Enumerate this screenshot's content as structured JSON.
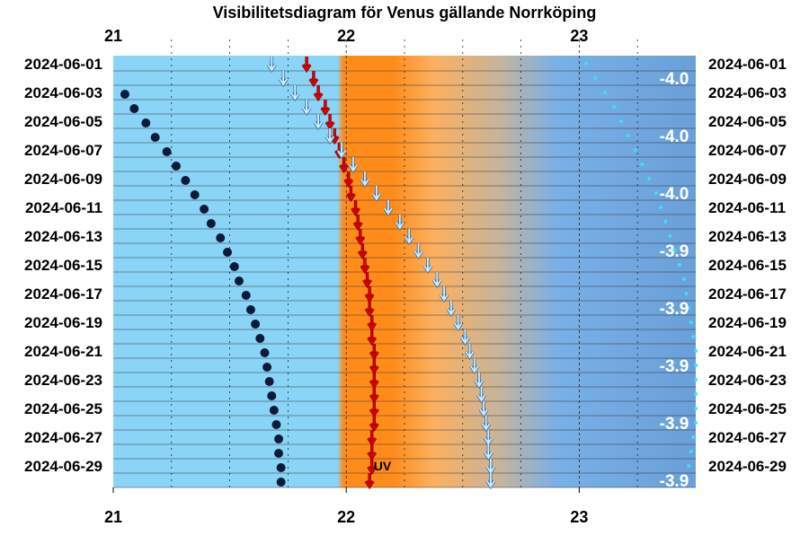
{
  "chart_data": {
    "type": "scatter",
    "title": "Visibilitetsdiagram för Venus gällande Norrköping",
    "x_axis": {
      "ticks": [
        "21",
        "22",
        "23"
      ],
      "range_hours": [
        21,
        23.5
      ]
    },
    "dates": [
      "2024-06-01",
      "2024-06-02",
      "2024-06-03",
      "2024-06-04",
      "2024-06-05",
      "2024-06-06",
      "2024-06-07",
      "2024-06-08",
      "2024-06-09",
      "2024-06-10",
      "2024-06-11",
      "2024-06-12",
      "2024-06-13",
      "2024-06-14",
      "2024-06-15",
      "2024-06-16",
      "2024-06-17",
      "2024-06-18",
      "2024-06-19",
      "2024-06-20",
      "2024-06-21",
      "2024-06-22",
      "2024-06-23",
      "2024-06-24",
      "2024-06-25",
      "2024-06-26",
      "2024-06-27",
      "2024-06-28",
      "2024-06-29",
      "2024-06-30"
    ],
    "date_labels": [
      "2024-06-01",
      "2024-06-03",
      "2024-06-05",
      "2024-06-07",
      "2024-06-09",
      "2024-06-11",
      "2024-06-13",
      "2024-06-15",
      "2024-06-17",
      "2024-06-19",
      "2024-06-21",
      "2024-06-23",
      "2024-06-25",
      "2024-06-27",
      "2024-06-29"
    ],
    "series": [
      {
        "kind": "moon_dots",
        "color": "#0d1a3a",
        "values": [
          null,
          null,
          21.05,
          21.09,
          21.14,
          21.18,
          21.23,
          21.27,
          21.31,
          21.35,
          21.39,
          21.42,
          21.46,
          21.49,
          21.52,
          21.54,
          21.57,
          21.59,
          21.61,
          21.63,
          21.65,
          21.66,
          21.67,
          21.68,
          21.69,
          21.7,
          21.71,
          21.71,
          21.72,
          21.72
        ]
      },
      {
        "kind": "sunset_arrows",
        "color": "#e00000",
        "values": [
          21.83,
          21.86,
          21.88,
          21.91,
          21.93,
          21.95,
          21.97,
          21.99,
          22.01,
          22.02,
          22.04,
          22.05,
          22.06,
          22.07,
          22.08,
          22.09,
          22.1,
          22.1,
          22.11,
          22.11,
          22.12,
          22.12,
          22.12,
          22.12,
          22.12,
          22.12,
          22.11,
          22.11,
          22.11,
          22.1
        ]
      },
      {
        "kind": "venus_set_arrows",
        "color": "#cfeeff",
        "values": [
          21.68,
          21.73,
          21.78,
          21.83,
          21.88,
          21.93,
          21.98,
          22.03,
          22.08,
          22.13,
          22.18,
          22.23,
          22.27,
          22.31,
          22.35,
          22.39,
          22.42,
          22.45,
          22.48,
          22.51,
          22.53,
          22.55,
          22.57,
          22.58,
          22.59,
          22.6,
          22.61,
          22.61,
          22.62,
          22.62
        ]
      },
      {
        "kind": "twilight_dots",
        "color": "#40e0f0",
        "values": [
          23.03,
          23.07,
          23.11,
          23.15,
          23.18,
          23.21,
          23.24,
          23.27,
          23.3,
          23.33,
          23.35,
          23.37,
          23.39,
          23.41,
          23.43,
          23.45,
          23.46,
          23.47,
          23.48,
          23.49,
          23.5,
          23.5,
          23.5,
          23.5,
          23.5,
          23.5,
          23.49,
          23.48,
          23.47,
          23.46
        ]
      }
    ],
    "magnitudes": [
      "-4.0",
      "-4.0",
      "-4.0",
      "-3.9",
      "-3.9",
      "-3.9",
      "-3.9",
      "-3.9"
    ],
    "magnitude_rows": [
      1,
      5,
      9,
      13,
      17,
      21,
      25,
      29
    ],
    "annotation": "UV",
    "annotation_row": 28,
    "colors": {
      "day": "#8ad4f8",
      "sunset": "#ff8c1a",
      "twilight": "#6a9fd8",
      "grid": "#000000"
    }
  }
}
